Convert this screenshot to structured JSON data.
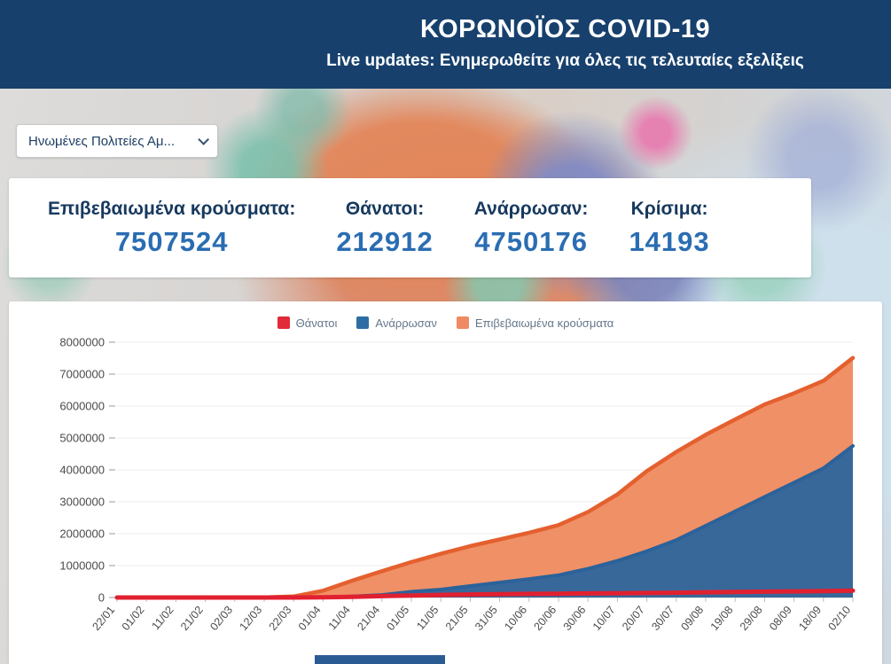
{
  "header": {
    "title": "ΚΟΡΩΝΟΪΟΣ COVID-19",
    "subtitle": "Live updates: Ενημερωθείτε για όλες τις τελευταίες εξελίξεις"
  },
  "country_select": {
    "value": "Ηνωμένες Πολιτείες Αμ..."
  },
  "stats": [
    {
      "label": "Επιβεβαιωμένα κρούσματα:",
      "value": "7507524"
    },
    {
      "label": "Θάνατοι:",
      "value": "212912"
    },
    {
      "label": "Ανάρρωσαν:",
      "value": "4750176"
    },
    {
      "label": "Κρίσιμα:",
      "value": "14193"
    }
  ],
  "chart_data": {
    "type": "area",
    "title": "",
    "xlabel": "",
    "ylabel": "",
    "ylim": [
      0,
      8000000
    ],
    "grid": true,
    "legend_position": "top",
    "legend": [
      {
        "label": "Θάνατοι",
        "color": "#e12b38"
      },
      {
        "label": "Ανάρρωσαν",
        "color": "#2e6da4"
      },
      {
        "label": "Επιβεβαιωμένα κρούσματα",
        "color": "#ef8a63"
      }
    ],
    "yticks": [
      "0",
      "1000000",
      "2000000",
      "3000000",
      "4000000",
      "5000000",
      "6000000",
      "7000000",
      "8000000"
    ],
    "categories": [
      "22/01",
      "01/02",
      "11/02",
      "21/02",
      "02/03",
      "12/03",
      "22/03",
      "01/04",
      "11/04",
      "21/04",
      "01/05",
      "11/05",
      "21/05",
      "31/05",
      "10/06",
      "20/06",
      "30/06",
      "10/07",
      "20/07",
      "30/07",
      "09/08",
      "19/08",
      "29/08",
      "08/09",
      "18/09",
      "02/10"
    ],
    "series": [
      {
        "name": "Επιβεβαιωμένα κρούσματα",
        "color": "#e4602f",
        "fill": "#f09066",
        "area": true,
        "line_width": 4.5,
        "values": [
          0,
          8,
          13,
          15,
          100,
          1700,
          33000,
          215000,
          530000,
          825000,
          1110000,
          1370000,
          1610000,
          1820000,
          2030000,
          2270000,
          2680000,
          3230000,
          3960000,
          4560000,
          5100000,
          5580000,
          6050000,
          6400000,
          6790000,
          7507524
        ]
      },
      {
        "name": "Ανάρρωσαν",
        "color": "#2b629a",
        "fill": "#38689a",
        "area": true,
        "line_width": 4,
        "values": [
          0,
          0,
          0,
          0,
          7,
          12,
          180,
          8500,
          32000,
          80000,
          180000,
          250000,
          360000,
          470000,
          580000,
          700000,
          900000,
          1150000,
          1450000,
          1800000,
          2250000,
          2700000,
          3150000,
          3600000,
          4050000,
          4750176
        ]
      },
      {
        "name": "Θάνατοι",
        "color": "#e12030",
        "fill": "none",
        "area": false,
        "line_width": 5,
        "values": [
          0,
          0,
          0,
          0,
          1,
          41,
          420,
          5100,
          20500,
          45300,
          65000,
          80600,
          95000,
          106000,
          113000,
          120000,
          128000,
          134000,
          141000,
          151000,
          163000,
          173000,
          183000,
          191000,
          200000,
          212912
        ]
      }
    ]
  }
}
